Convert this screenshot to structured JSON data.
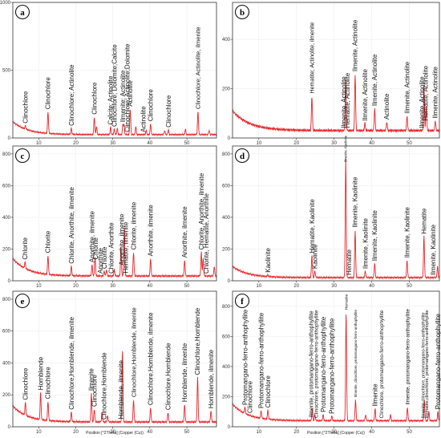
{
  "colors": {
    "trace": "#e8262b",
    "frame": "#333333",
    "grid": "#cccccc",
    "badge_border": "#111111"
  },
  "chart_data": [
    {
      "panel": "a",
      "type": "line",
      "xlim": [
        3,
        58
      ],
      "ylim": [
        0,
        1000
      ],
      "yticks": [
        0,
        500,
        1000
      ],
      "xticks": [
        10,
        20,
        30,
        40,
        50
      ],
      "grid": true,
      "baseline": {
        "start": 120,
        "decay": 4,
        "floor": 25
      },
      "peaks": [
        [
          6.4,
          25
        ],
        [
          12.5,
          160
        ],
        [
          18.8,
          45
        ],
        [
          25.0,
          130
        ],
        [
          25.6,
          60
        ],
        [
          29.4,
          55
        ],
        [
          30.4,
          40
        ],
        [
          31.2,
          45
        ],
        [
          32.7,
          70
        ],
        [
          33.0,
          70
        ],
        [
          34.7,
          190
        ],
        [
          36.2,
          60
        ],
        [
          39.0,
          30
        ],
        [
          40.2,
          80
        ],
        [
          44.0,
          30
        ],
        [
          45.0,
          35
        ],
        [
          49.6,
          40
        ],
        [
          53.0,
          170
        ],
        [
          56.0,
          30
        ]
      ],
      "annotations": [
        {
          "text": "Clinochlore",
          "x": 6.4
        },
        {
          "text": "Clinochlore",
          "x": 12.5
        },
        {
          "text": "Clinochlore; Actinolite",
          "x": 18.8
        },
        {
          "text": "Clinochlore",
          "x": 25.0
        },
        {
          "text": "Calcite; Actinolite",
          "x": 29.4
        },
        {
          "text": "Clinochlore; Dolomite;Calcite",
          "x": 30.4
        },
        {
          "text": "Ilmenite; Actinolite",
          "x": 32.7
        },
        {
          "text": "Clinochlore; Actinolite;Dolomite",
          "x": 33.9
        },
        {
          "text": "Actinolite",
          "x": 34.7
        },
        {
          "text": "Actinolite",
          "x": 38.2
        },
        {
          "text": "Clinochlore",
          "x": 40.2
        },
        {
          "text": "Clinochlore",
          "x": 45.0
        },
        {
          "text": "Clinochlore; Actinolite, ilmenite",
          "x": 53.0
        }
      ],
      "xlabel": ""
    },
    {
      "panel": "b",
      "type": "line",
      "xlim": [
        3,
        58
      ],
      "ylim": [
        0,
        550
      ],
      "yticks": [
        0,
        200,
        400
      ],
      "xticks": [
        10,
        20,
        30,
        40,
        50
      ],
      "grid": true,
      "baseline": {
        "start": 110,
        "decay": 4.5,
        "floor": 30
      },
      "peaks": [
        [
          24.1,
          140
        ],
        [
          33.1,
          200
        ],
        [
          35.6,
          230
        ],
        [
          38.2,
          30
        ],
        [
          40.8,
          90
        ],
        [
          44.0,
          35
        ],
        [
          49.4,
          60
        ],
        [
          53.9,
          180
        ],
        [
          54.5,
          100
        ],
        [
          56.9,
          40
        ]
      ],
      "annotations": [
        {
          "text": "Hematite; Actinolite, ilmenite",
          "x": 24.1
        },
        {
          "text": "Ilmenite, Actinolite",
          "x": 32.6
        },
        {
          "text": "Hematite, Actinolite",
          "x": 33.5
        },
        {
          "text": "Ilmenite, Actinolite",
          "x": 35.6
        },
        {
          "text": "Ilmenite, Actinolite",
          "x": 38.2
        },
        {
          "text": "Ilmenite, Actinolite",
          "x": 40.8
        },
        {
          "text": "Actinolite",
          "x": 44.0
        },
        {
          "text": "Ilmenite, Actinolite",
          "x": 49.4
        },
        {
          "text": "Ilmenite, Actinolite",
          "x": 53.4
        },
        {
          "text": "Hematite, Actinolite",
          "x": 54.3
        },
        {
          "text": "Ilmenite, Actinolite",
          "x": 56.9
        }
      ],
      "xlabel": ""
    },
    {
      "panel": "c",
      "type": "line",
      "xlim": [
        3,
        58
      ],
      "ylim": [
        0,
        850
      ],
      "yticks": [
        0,
        200,
        400,
        600,
        800
      ],
      "xticks": [
        10,
        20,
        30,
        40,
        50
      ],
      "grid": true,
      "baseline": {
        "start": 140,
        "decay": 4,
        "floor": 30
      },
      "peaks": [
        [
          6.3,
          40
        ],
        [
          12.5,
          120
        ],
        [
          18.8,
          60
        ],
        [
          24.4,
          70
        ],
        [
          25.2,
          120
        ],
        [
          27.7,
          30
        ],
        [
          28.3,
          40
        ],
        [
          30.4,
          40
        ],
        [
          32.2,
          180
        ],
        [
          33.1,
          300
        ],
        [
          35.6,
          150
        ],
        [
          40.2,
          110
        ],
        [
          49.4,
          100
        ],
        [
          53.9,
          150
        ],
        [
          54.4,
          110
        ],
        [
          57.4,
          60
        ]
      ],
      "annotations": [
        {
          "text": "Chlorite",
          "x": 6.3
        },
        {
          "text": "Chlorite",
          "x": 12.5
        },
        {
          "text": "Chlorite, Anorthite, ilmenite",
          "x": 18.8
        },
        {
          "text": "Anorthite, ilmenite",
          "x": 24.4
        },
        {
          "text": "Chlorite",
          "x": 25.3
        },
        {
          "text": "Anorthite",
          "x": 26.7
        },
        {
          "text": "Chlorite",
          "x": 27.7
        },
        {
          "text": "Chlorite, Anorthite",
          "x": 29.6
        },
        {
          "text": "Anorthite, ilmenite",
          "x": 32.4
        },
        {
          "text": "Hematite, ilmenite",
          "x": 33.5
        },
        {
          "text": "Chlorite, ilmenite",
          "x": 35.6
        },
        {
          "text": "Anorthite, ilmenite",
          "x": 40.2
        },
        {
          "text": "Anorthite, ilmenite",
          "x": 49.4
        },
        {
          "text": "Chlorite, Anorthite, ilmenite",
          "x": 53.9
        },
        {
          "text": "Chlorite, Hematite, Anorthite",
          "x": 55.2
        }
      ],
      "xlabel": ""
    },
    {
      "panel": "d",
      "type": "line",
      "xlim": [
        3,
        58
      ],
      "ylim": [
        0,
        850
      ],
      "yticks": [
        0,
        200,
        400,
        600,
        800
      ],
      "xticks": [
        10,
        20,
        30,
        40,
        50
      ],
      "grid": true,
      "baseline": {
        "start": 90,
        "decay": 4,
        "floor": 20
      },
      "peaks": [
        [
          12.4,
          10
        ],
        [
          24.1,
          140
        ],
        [
          24.9,
          40
        ],
        [
          33.1,
          750
        ],
        [
          35.6,
          300
        ],
        [
          38.3,
          40
        ],
        [
          40.8,
          90
        ],
        [
          49.4,
          110
        ],
        [
          53.9,
          260
        ],
        [
          57.5,
          70
        ]
      ],
      "annotations": [
        {
          "text": "Kaolinite",
          "x": 12.4
        },
        {
          "text": "Hematite, Kaolinite",
          "x": 24.1
        },
        {
          "text": "Kaolinite",
          "x": 24.9
        },
        {
          "text": "Ilmenite, Kaolinite",
          "x": 33.1
        },
        {
          "text": "Hematite",
          "x": 34.0
        },
        {
          "text": "Ilmenite, Kaolinite",
          "x": 35.6
        },
        {
          "text": "Ilmenite, Kaolinite",
          "x": 38.3
        },
        {
          "text": "Ilmenite, Kaolinite",
          "x": 40.8
        },
        {
          "text": "Ilmenite, Kaolinite",
          "x": 49.4
        },
        {
          "text": "Hematite",
          "x": 53.9
        },
        {
          "text": "Ilmenite, Kaolinite",
          "x": 56.3
        }
      ],
      "xlabel": ""
    },
    {
      "panel": "e",
      "type": "line",
      "xlim": [
        3,
        58
      ],
      "ylim": [
        0,
        850
      ],
      "yticks": [
        0,
        200,
        400,
        600,
        800
      ],
      "xticks": [
        10,
        20,
        30,
        40,
        50
      ],
      "grid": true,
      "baseline": {
        "start": 130,
        "decay": 4,
        "floor": 30
      },
      "peaks": [
        [
          6.4,
          80
        ],
        [
          10.5,
          170
        ],
        [
          12.5,
          120
        ],
        [
          18.8,
          60
        ],
        [
          24.2,
          180
        ],
        [
          25.0,
          80
        ],
        [
          27.1,
          60
        ],
        [
          28.6,
          40
        ],
        [
          32.6,
          450
        ],
        [
          35.6,
          140
        ],
        [
          40.2,
          90
        ],
        [
          44.9,
          60
        ],
        [
          49.4,
          110
        ],
        [
          52.9,
          280
        ],
        [
          56.5,
          70
        ]
      ],
      "annotations": [
        {
          "text": "Clinochlore",
          "x": 6.4
        },
        {
          "text": "Hornblende",
          "x": 10.5
        },
        {
          "text": "Clinochlore",
          "x": 12.5
        },
        {
          "text": "Clinochlore,Hornblende, ilmenite",
          "x": 18.8
        },
        {
          "text": "Ilmenite",
          "x": 24.2
        },
        {
          "text": "Clinochlore",
          "x": 25.0
        },
        {
          "text": "Clinochlore,Hornblende",
          "x": 27.6
        },
        {
          "text": "Hornblende, ilmenite",
          "x": 32.2
        },
        {
          "text": "Clinochlore,Hornblende, ilmenite",
          "x": 35.6
        },
        {
          "text": "Clinochlore,Hornblende, ilmenite",
          "x": 40.2
        },
        {
          "text": "Clinochlore,Hornblende",
          "x": 44.9
        },
        {
          "text": "Hornblende, ilmenite",
          "x": 49.4
        },
        {
          "text": "Clinochlore,Hornblende",
          "x": 52.9
        },
        {
          "text": "Hornblende, ilmenite",
          "x": 56.5
        }
      ],
      "xlabel": "Position [°2Theta] (Copper (Cu))"
    },
    {
      "panel": "f",
      "type": "line",
      "xlim": [
        3,
        58
      ],
      "ylim": [
        0,
        900
      ],
      "yticks": [
        0,
        200,
        400,
        600,
        800
      ],
      "xticks": [
        10,
        20,
        30,
        40,
        50
      ],
      "grid": true,
      "baseline": {
        "start": 150,
        "decay": 4,
        "floor": 40
      },
      "peaks": [
        [
          6.3,
          40
        ],
        [
          10.6,
          50
        ],
        [
          12.4,
          60
        ],
        [
          24.2,
          80
        ],
        [
          24.9,
          40
        ],
        [
          27.1,
          40
        ],
        [
          29.4,
          30
        ],
        [
          33.2,
          720
        ],
        [
          35.7,
          140
        ],
        [
          38.4,
          40
        ],
        [
          40.9,
          80
        ],
        [
          45.0,
          40
        ],
        [
          49.5,
          90
        ],
        [
          54.0,
          140
        ],
        [
          55.2,
          60
        ],
        [
          57.6,
          60
        ]
      ],
      "annotations": [
        {
          "text": "Protomangano-ferro-anthophyllite",
          "x": 6.3
        },
        {
          "text": "Clinochlore",
          "x": 7.6
        },
        {
          "text": "Protomangano-ferro-anthophyllite",
          "x": 10.6
        },
        {
          "text": "Clinochlore",
          "x": 12.4
        },
        {
          "text": "Ilmenite, protomangano-ferro-anthophyllite",
          "x": 23.9
        },
        {
          "text": "Clinochlore, protomangano-ferro-anthophyllite",
          "x": 25.2
        },
        {
          "text": "Protomangano-ferro-anthophyllite",
          "x": 27.1
        },
        {
          "text": "Protomangano-ferro-anthophyllite",
          "x": 29.4
        },
        {
          "text": "Hematite",
          "x": 33.2
        },
        {
          "text": "Ilmenite, clinochlore, protomangano-ferro-anthophyllite",
          "x": 35.7
        },
        {
          "text": "Ilmenite",
          "x": 40.9
        },
        {
          "text": "Clinochlore, protomangano-ferro-anthophyllite",
          "x": 42.6
        },
        {
          "text": "Ilmenite, protomangano-ferro-anthophyllite",
          "x": 49.5
        },
        {
          "text": "Ilmenite,clinochlore, protomangano-ferro-anthophyllite",
          "x": 53.6
        },
        {
          "text": "Hematite,clinochlore, protomangano-ferro-anthophyllite",
          "x": 54.6
        },
        {
          "text": "Protomangano-ferro-anthophyllite",
          "x": 57.6
        }
      ],
      "xlabel": "Position [°2Theta] (Copper (Cu))"
    }
  ]
}
